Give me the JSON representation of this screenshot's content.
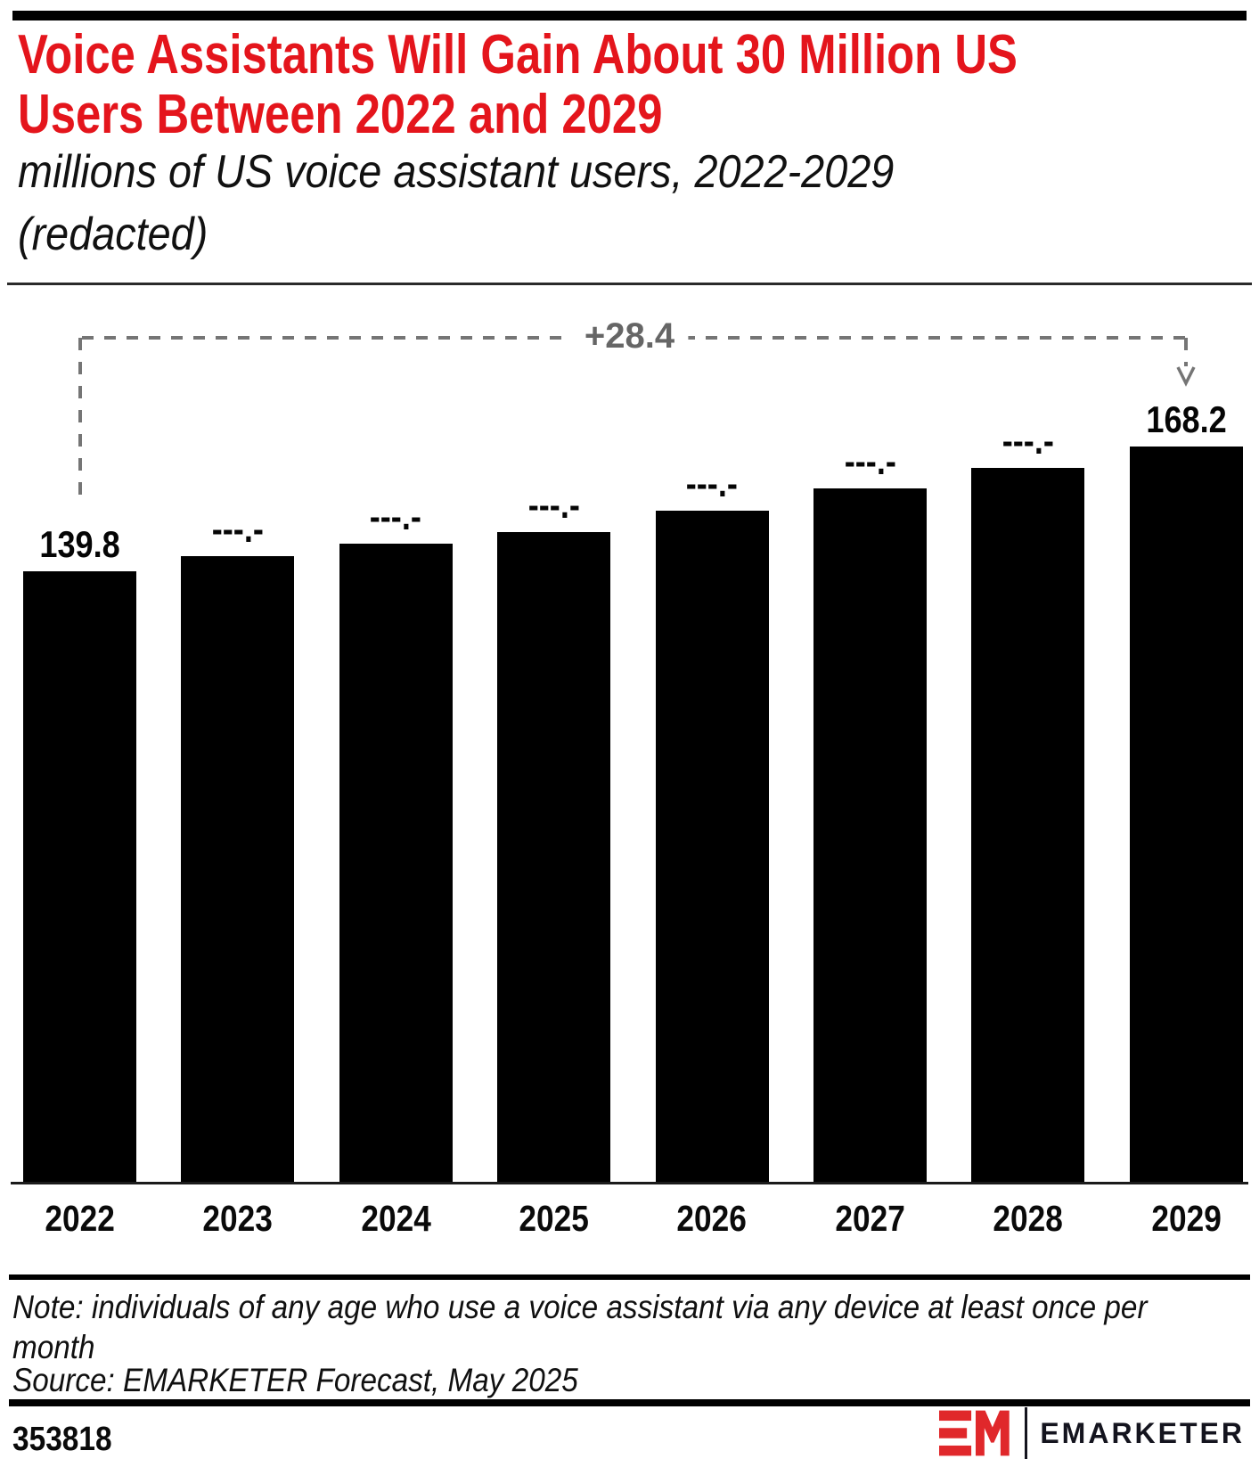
{
  "header": {
    "title_lines": [
      "Voice Assistants Will Gain About 30 Million US",
      "Users Between 2022 and 2029"
    ],
    "subtitle_lines": [
      "millions of US voice assistant users, 2022-2029",
      "(redacted)"
    ]
  },
  "chart_data": {
    "type": "bar",
    "title": "Voice Assistants Will Gain About 30 Million US Users Between 2022 and 2029",
    "subtitle": "millions of US voice assistant users, 2022-2029 (redacted)",
    "categories": [
      "2022",
      "2023",
      "2024",
      "2025",
      "2026",
      "2027",
      "2028",
      "2029"
    ],
    "values": [
      139.8,
      143.3,
      146.1,
      148.8,
      153.6,
      158.7,
      163.4,
      168.2
    ],
    "value_labels": [
      "139.8",
      "---.-",
      "---.-",
      "---.-",
      "---.-",
      "---.-",
      "---.-",
      "168.2"
    ],
    "ylabel": "millions of US voice assistant users",
    "xlabel": "",
    "ylim": [
      0,
      180
    ],
    "grid": false,
    "legend": false,
    "bar_color": "#000000",
    "annotation": {
      "label": "+28.4",
      "from_category": "2022",
      "to_category": "2029"
    }
  },
  "footer": {
    "note_lines": [
      "Note: individuals of any age who use a voice assistant via any device at least once per",
      "month"
    ],
    "source": "Source: EMARKETER Forecast, May 2025",
    "chart_id": "353818",
    "logo_text": "EMARKETER"
  },
  "colors": {
    "title_red": "#e4151c",
    "logo_red": "#e0282b",
    "annotation_gray": "#757575",
    "bar_black": "#000000",
    "top_bar_black": "#000000"
  }
}
